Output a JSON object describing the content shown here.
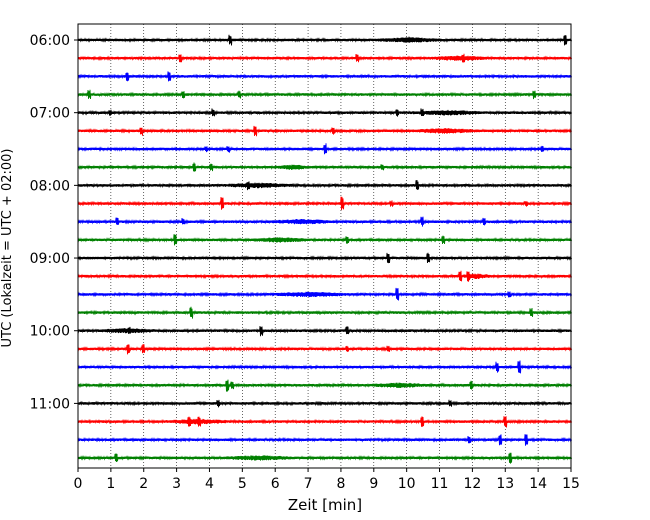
{
  "chart_data": {
    "type": "line",
    "title": "",
    "xlabel": "Zeit  [min]",
    "ylabel": "UTC (Lokalzeit = UTC + 02:00)",
    "xlim": [
      0,
      15
    ],
    "x_ticks": [
      "0",
      "1",
      "2",
      "3",
      "4",
      "5",
      "6",
      "7",
      "8",
      "9",
      "10",
      "11",
      "12",
      "13",
      "14",
      "15"
    ],
    "y_ticks": [
      "06:00",
      "07:00",
      "08:00",
      "09:00",
      "10:00",
      "11:00"
    ],
    "row_interval_minutes": 15,
    "grid": "vertical dotted at each minute",
    "color_cycle": [
      "#000000",
      "#ff0000",
      "#0000ff",
      "#008000"
    ],
    "series": [
      {
        "start": "06:00"
      },
      {
        "start": "06:15"
      },
      {
        "start": "06:30"
      },
      {
        "start": "06:45"
      },
      {
        "start": "07:00"
      },
      {
        "start": "07:15"
      },
      {
        "start": "07:30"
      },
      {
        "start": "07:45"
      },
      {
        "start": "08:00"
      },
      {
        "start": "08:15"
      },
      {
        "start": "08:30"
      },
      {
        "start": "08:45"
      },
      {
        "start": "09:00"
      },
      {
        "start": "09:15"
      },
      {
        "start": "09:30"
      },
      {
        "start": "09:45"
      },
      {
        "start": "10:00"
      },
      {
        "start": "10:15"
      },
      {
        "start": "10:30"
      },
      {
        "start": "10:45"
      },
      {
        "start": "11:00"
      },
      {
        "start": "11:15"
      },
      {
        "start": "11:30"
      },
      {
        "start": "11:45"
      }
    ]
  }
}
